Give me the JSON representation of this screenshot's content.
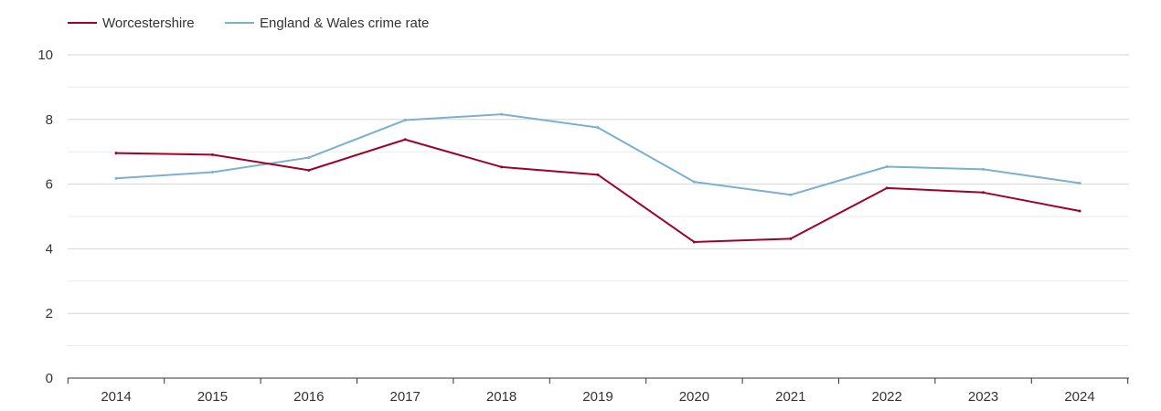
{
  "chart_data": {
    "type": "line",
    "x": [
      "2014",
      "2015",
      "2016",
      "2017",
      "2018",
      "2019",
      "2020",
      "2021",
      "2022",
      "2023",
      "2024"
    ],
    "series": [
      {
        "name": "Worcestershire",
        "color": "#a0002e",
        "values": [
          6.96,
          6.91,
          6.43,
          7.38,
          6.53,
          6.29,
          4.21,
          4.31,
          5.88,
          5.74,
          5.17
        ]
      },
      {
        "name": "England & Wales crime rate",
        "color": "#7ab0d0",
        "values": [
          6.18,
          6.37,
          6.82,
          7.98,
          8.16,
          7.75,
          6.07,
          5.67,
          6.54,
          6.46,
          6.03
        ]
      }
    ],
    "yticks": [
      0,
      2,
      4,
      6,
      8,
      10
    ],
    "ylim": [
      0,
      10
    ],
    "grid": true,
    "legend_position": "top-left",
    "title": "",
    "xlabel": "",
    "ylabel": ""
  }
}
